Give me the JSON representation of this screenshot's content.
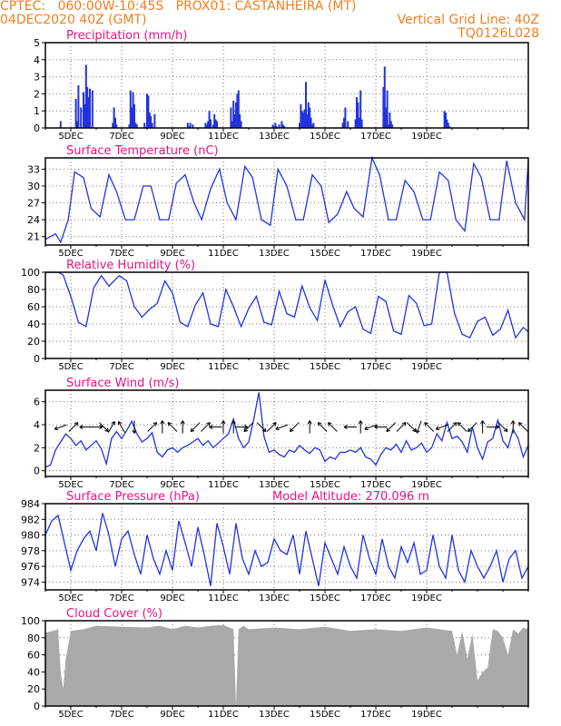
{
  "header": {
    "line1_left": "CPTEC:   060:00W-10:45S   PROX01: CASTANHEIRA (MT)",
    "line2_left": "04DEC2020 40Z (GMT)",
    "line2_right": "Vertical Grid Line: 40Z",
    "line3_right": "TQ0126L028"
  },
  "colors": {
    "header": "#f07f1e",
    "title": "#e8147c",
    "series": "#2233dd",
    "cloud": "#a9a9a9",
    "axis": "#000000"
  },
  "x_ticks": [
    "5DEC",
    "7DEC",
    "9DEC",
    "11DEC",
    "13DEC",
    "15DEC",
    "17DEC",
    "19DEC"
  ],
  "chart_data": [
    {
      "type": "bar",
      "title": "Precipitation (mm/h)",
      "ylim": [
        0,
        5
      ],
      "yticks": [
        "0",
        "1",
        "2",
        "3",
        "4",
        "5"
      ],
      "x_unit": "days since 4DEC 00Z",
      "x": [
        0.6,
        1.2,
        1.25,
        1.3,
        1.4,
        1.5,
        1.55,
        1.6,
        1.65,
        1.7,
        1.75,
        1.85,
        2.65,
        2.7,
        2.75,
        2.8,
        3.3,
        3.35,
        3.4,
        3.45,
        3.5,
        3.55,
        3.6,
        3.9,
        4.0,
        4.05,
        4.1,
        4.15,
        4.2,
        4.3,
        5.6,
        5.65,
        5.7,
        5.8,
        6.3,
        6.35,
        6.4,
        6.45,
        6.5,
        6.6,
        6.65,
        6.7,
        6.75,
        7.3,
        7.35,
        7.4,
        7.45,
        7.5,
        7.55,
        7.6,
        7.65,
        7.7,
        8.95,
        9.0,
        9.05,
        9.1,
        9.2,
        9.3,
        9.35,
        9.4,
        10.0,
        10.05,
        10.1,
        10.15,
        10.2,
        10.25,
        10.3,
        10.35,
        10.4,
        10.45,
        10.5,
        10.55,
        11.7,
        11.75,
        11.8,
        11.9,
        12.2,
        12.25,
        12.3,
        12.35,
        12.4,
        12.45,
        13.3,
        13.35,
        13.4,
        13.45,
        13.5,
        13.55,
        13.6,
        13.65,
        15.7,
        15.75,
        15.8,
        15.85,
        15.9
      ],
      "values": [
        0.4,
        1.7,
        0.4,
        2.5,
        1.2,
        2.1,
        1.4,
        3.7,
        2.4,
        1.8,
        2.3,
        2.2,
        0.3,
        1.2,
        0.6,
        0.2,
        0.2,
        2.2,
        1.2,
        2.1,
        1.4,
        0.3,
        0.2,
        0.3,
        2.0,
        1.9,
        0.9,
        0.7,
        0.3,
        0.8,
        0.3,
        0.1,
        0.3,
        0.2,
        0.3,
        0.2,
        0.4,
        1.0,
        0.5,
        0.2,
        0.8,
        0.5,
        0.4,
        1.2,
        0.4,
        1.6,
        0.8,
        1.5,
        2.0,
        2.2,
        0.8,
        0.4,
        0.2,
        0.1,
        0.3,
        0.1,
        0.2,
        0.4,
        0.2,
        0.1,
        0.3,
        1.4,
        1.0,
        0.9,
        1.1,
        2.7,
        0.8,
        1.5,
        1.2,
        0.6,
        0.2,
        0.3,
        0.3,
        0.6,
        1.2,
        0.4,
        0.5,
        1.8,
        1.5,
        0.6,
        2.2,
        0.5,
        2.4,
        3.6,
        1.2,
        2.2,
        0.2,
        0.9,
        0.4,
        0.2,
        1.0,
        0.9,
        0.5,
        0.3,
        0.1
      ]
    },
    {
      "type": "line",
      "title": "Surface Temperature (nC)",
      "ylim": [
        19.5,
        35
      ],
      "yticks": [
        "21",
        "24",
        "27",
        "30",
        "33"
      ],
      "x_unit": "days since 4DEC 00Z",
      "x": [
        0,
        0.4,
        0.6,
        0.9,
        1.15,
        1.5,
        1.8,
        2.15,
        2.5,
        2.8,
        3.15,
        3.5,
        3.85,
        4.15,
        4.5,
        4.85,
        5.15,
        5.5,
        5.85,
        6.15,
        6.5,
        6.85,
        7.15,
        7.5,
        7.85,
        8.15,
        8.5,
        8.85,
        9.15,
        9.5,
        9.85,
        10.15,
        10.5,
        10.85,
        11.15,
        11.5,
        11.85,
        12.15,
        12.5,
        12.85,
        13.15,
        13.5,
        13.8,
        14.15,
        14.5,
        14.85,
        15.15,
        15.5,
        15.85,
        16.15,
        16.5,
        16.85,
        17.15,
        17.5,
        17.85,
        18.15,
        18.5,
        18.85,
        19.0
      ],
      "values": [
        20.5,
        21.5,
        20.0,
        24.0,
        32.5,
        31.5,
        26.0,
        24.5,
        32.0,
        29.0,
        24.0,
        24.0,
        30.0,
        30.0,
        24.0,
        24.0,
        30.5,
        32.0,
        27.0,
        24.0,
        29.5,
        33.0,
        27.0,
        24.0,
        33.5,
        31.5,
        24.0,
        23.0,
        33.0,
        30.0,
        24.0,
        24.0,
        32.0,
        30.0,
        23.5,
        25.0,
        29.0,
        26.0,
        24.5,
        35.0,
        32.0,
        24.0,
        24.0,
        31.0,
        29.0,
        24.0,
        24.0,
        32.5,
        31.0,
        24.0,
        22.0,
        34.0,
        31.5,
        24.0,
        24.0,
        34.5,
        27.0,
        24.0,
        34.5
      ]
    },
    {
      "type": "line",
      "title": "Relative Humidity (%)",
      "ylim": [
        0,
        100
      ],
      "yticks": [
        "0",
        "20",
        "40",
        "60",
        "80",
        "100"
      ],
      "x_unit": "days since 4DEC 00Z",
      "x": [
        0,
        0.5,
        0.7,
        1.0,
        1.3,
        1.6,
        1.9,
        2.2,
        2.5,
        2.7,
        2.9,
        3.2,
        3.5,
        3.8,
        4.1,
        4.4,
        4.7,
        5.0,
        5.3,
        5.6,
        5.9,
        6.2,
        6.5,
        6.8,
        7.1,
        7.4,
        7.7,
        8.0,
        8.3,
        8.6,
        8.9,
        9.2,
        9.5,
        9.8,
        10.1,
        10.4,
        10.7,
        11.0,
        11.3,
        11.6,
        11.9,
        12.2,
        12.5,
        12.8,
        13.1,
        13.4,
        13.7,
        14.0,
        14.3,
        14.6,
        14.9,
        15.2,
        15.5,
        15.8,
        16.1,
        16.4,
        16.7,
        17.0,
        17.3,
        17.6,
        17.9,
        18.2,
        18.5,
        18.8,
        19.0
      ],
      "values": [
        100,
        100,
        97,
        72,
        42,
        37,
        82,
        96,
        84,
        90,
        96,
        90,
        60,
        48,
        57,
        64,
        90,
        76,
        42,
        37,
        62,
        76,
        40,
        37,
        80,
        60,
        37,
        58,
        72,
        42,
        39,
        78,
        52,
        48,
        84,
        59,
        44,
        91,
        62,
        37,
        54,
        60,
        34,
        29,
        72,
        66,
        32,
        28,
        73,
        64,
        38,
        40,
        100,
        100,
        52,
        28,
        24,
        43,
        48,
        27,
        34,
        56,
        24,
        36,
        31
      ]
    },
    {
      "type": "line",
      "title": "Surface Wind (m/s)",
      "ylim": [
        -0.5,
        7
      ],
      "yticks": [
        "0",
        "2",
        "4",
        "6"
      ],
      "x_unit": "days since 4DEC 00Z",
      "x": [
        0,
        0.2,
        0.4,
        0.6,
        0.8,
        1.0,
        1.2,
        1.4,
        1.6,
        1.8,
        2.0,
        2.2,
        2.4,
        2.6,
        2.8,
        3.0,
        3.2,
        3.4,
        3.6,
        3.8,
        4.0,
        4.2,
        4.4,
        4.6,
        4.8,
        5.0,
        5.2,
        5.4,
        5.6,
        5.8,
        6.0,
        6.2,
        6.4,
        6.6,
        6.8,
        7.0,
        7.2,
        7.4,
        7.6,
        7.8,
        8.0,
        8.2,
        8.4,
        8.6,
        8.8,
        9.0,
        9.2,
        9.4,
        9.6,
        9.8,
        10.0,
        10.2,
        10.4,
        10.6,
        10.8,
        11.0,
        11.2,
        11.4,
        11.6,
        11.8,
        12.0,
        12.2,
        12.4,
        12.6,
        12.8,
        13.0,
        13.2,
        13.4,
        13.6,
        13.8,
        14.0,
        14.2,
        14.4,
        14.6,
        14.8,
        15.0,
        15.2,
        15.4,
        15.6,
        15.8,
        16.0,
        16.2,
        16.4,
        16.6,
        16.8,
        17.0,
        17.2,
        17.4,
        17.6,
        17.8,
        18.0,
        18.2,
        18.4,
        18.6,
        18.8,
        19.0
      ],
      "values": [
        0.3,
        0.5,
        1.8,
        2.5,
        3.2,
        2.8,
        2.2,
        2.6,
        1.8,
        2.2,
        2.6,
        1.9,
        0.6,
        2.8,
        3.4,
        2.8,
        3.5,
        4.3,
        3.2,
        2.5,
        2.8,
        3.3,
        1.6,
        1.2,
        1.8,
        2.0,
        1.6,
        2.0,
        2.2,
        2.5,
        2.8,
        2.2,
        2.6,
        2.0,
        2.4,
        2.8,
        3.2,
        4.5,
        2.8,
        2.0,
        2.5,
        4.5,
        6.8,
        3.0,
        1.6,
        1.8,
        1.4,
        1.2,
        1.8,
        1.6,
        2.2,
        1.8,
        1.5,
        2.0,
        1.8,
        0.8,
        1.2,
        1.0,
        1.6,
        1.6,
        1.8,
        1.6,
        2.0,
        1.2,
        1.0,
        0.5,
        1.4,
        2.0,
        1.8,
        2.3,
        1.6,
        2.6,
        1.8,
        2.0,
        2.4,
        1.6,
        2.0,
        3.2,
        2.6,
        4.2,
        2.8,
        3.0,
        2.5,
        1.6,
        3.8,
        2.0,
        1.0,
        2.5,
        2.8,
        4.4,
        2.6,
        2.0,
        3.6,
        2.8,
        1.2,
        2.2
      ],
      "arrows_x": [
        0.6,
        1.1,
        1.6,
        2.0,
        2.3,
        2.6,
        3.0,
        3.5,
        4.2,
        4.6,
        5.0,
        5.4,
        5.9,
        6.3,
        6.7,
        7.0,
        7.4,
        7.7,
        8.0,
        8.5,
        8.9,
        9.3,
        9.8,
        10.4,
        10.9,
        11.3,
        12.0,
        12.4,
        12.8,
        13.2,
        13.6,
        14.0,
        14.4,
        14.7,
        15.1,
        15.6,
        16.0,
        16.4,
        16.8,
        17.2,
        17.6,
        18.0,
        18.4,
        18.8
      ]
    },
    {
      "type": "line",
      "title": "Surface Pressure (hPa)",
      "annotation": "Model Altitude: 270.096 m",
      "ylim": [
        973,
        984
      ],
      "yticks": [
        "974",
        "976",
        "978",
        "980",
        "982",
        "984"
      ],
      "x_unit": "days since 4DEC 00Z",
      "x": [
        0,
        0.25,
        0.5,
        0.75,
        1.0,
        1.25,
        1.5,
        1.75,
        2.0,
        2.25,
        2.5,
        2.75,
        3.0,
        3.25,
        3.5,
        3.75,
        4.0,
        4.25,
        4.5,
        4.75,
        5.0,
        5.25,
        5.5,
        5.75,
        6.0,
        6.25,
        6.5,
        6.75,
        7.0,
        7.25,
        7.5,
        7.75,
        8.0,
        8.25,
        8.5,
        8.75,
        9.0,
        9.25,
        9.5,
        9.75,
        10.0,
        10.25,
        10.5,
        10.75,
        11.0,
        11.25,
        11.5,
        11.75,
        12.0,
        12.25,
        12.5,
        12.75,
        13.0,
        13.25,
        13.5,
        13.75,
        14.0,
        14.25,
        14.5,
        14.75,
        15.0,
        15.25,
        15.5,
        15.75,
        16.0,
        16.25,
        16.5,
        16.75,
        17.0,
        17.25,
        17.5,
        17.75,
        18.0,
        18.25,
        18.5,
        18.75,
        19.0
      ],
      "values": [
        980.0,
        981.8,
        982.5,
        979.0,
        975.5,
        978.0,
        979.5,
        980.5,
        978.0,
        982.8,
        980.0,
        976.0,
        979.5,
        980.5,
        977.5,
        975.0,
        980.0,
        977.0,
        975.0,
        978.0,
        975.5,
        981.8,
        979.0,
        976.0,
        981.0,
        977.5,
        973.5,
        981.5,
        978.5,
        975.0,
        981.5,
        977.0,
        975.0,
        978.0,
        976.0,
        976.5,
        979.5,
        978.0,
        977.5,
        980.0,
        975.0,
        980.5,
        977.0,
        973.5,
        979.0,
        977.0,
        975.0,
        978.5,
        976.0,
        974.5,
        980.0,
        977.0,
        975.0,
        979.5,
        976.0,
        974.5,
        978.5,
        976.5,
        979.0,
        975.0,
        975.5,
        980.0,
        976.0,
        974.5,
        980.0,
        975.5,
        974.0,
        978.0,
        976.0,
        974.5,
        976.0,
        978.0,
        974.0,
        977.0,
        978.0,
        974.5,
        976.0
      ]
    },
    {
      "type": "area",
      "title": "Cloud Cover (%)",
      "ylim": [
        0,
        100
      ],
      "yticks": [
        "0",
        "20",
        "40",
        "60",
        "80",
        "100"
      ],
      "x_unit": "days since 4DEC 00Z",
      "x": [
        0,
        0.3,
        0.5,
        0.6,
        0.7,
        0.8,
        1.0,
        1.5,
        2.0,
        3.0,
        4.0,
        4.5,
        5.0,
        5.5,
        6.0,
        6.5,
        7.0,
        7.4,
        7.5,
        7.6,
        7.8,
        8.0,
        9.0,
        10.0,
        11.0,
        12.0,
        13.0,
        14.0,
        15.0,
        16.0,
        16.2,
        16.4,
        16.6,
        16.8,
        17.0,
        17.2,
        17.4,
        17.6,
        17.8,
        18.0,
        18.2,
        18.4,
        18.6,
        18.8,
        19.0
      ],
      "values": [
        86,
        88,
        90,
        40,
        20,
        55,
        88,
        90,
        94,
        93,
        92,
        94,
        90,
        94,
        92,
        94,
        95,
        90,
        1,
        90,
        94,
        90,
        92,
        90,
        93,
        88,
        90,
        88,
        92,
        88,
        60,
        88,
        55,
        85,
        30,
        40,
        45,
        90,
        88,
        80,
        60,
        90,
        85,
        92,
        90
      ]
    }
  ]
}
